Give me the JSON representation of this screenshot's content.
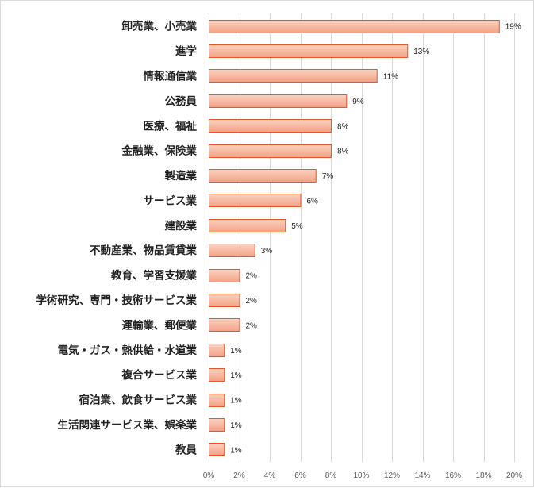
{
  "chart_data": {
    "type": "bar",
    "orientation": "horizontal",
    "title": "",
    "xlabel": "",
    "ylabel": "",
    "categories": [
      "卸売業、小売業",
      "進学",
      "情報通信業",
      "公務員",
      "医療、福祉",
      "金融業、保険業",
      "製造業",
      "サービス業",
      "建設業",
      "不動産業、物品賃貸業",
      "教育、学習支援業",
      "学術研究、専門・技術サービス業",
      "運輸業、郵便業",
      "電気・ガス・熱供給・水道業",
      "複合サービス業",
      "宿泊業、飲食サービス業",
      "生活関連サービス業、娯楽業",
      "教員"
    ],
    "values": [
      19,
      13,
      11,
      9,
      8,
      8,
      7,
      6,
      5,
      3,
      2,
      2,
      2,
      1,
      1,
      1,
      1,
      1
    ],
    "data_labels": [
      "19%",
      "13%",
      "11%",
      "9%",
      "8%",
      "8%",
      "7%",
      "6%",
      "5%",
      "3%",
      "2%",
      "2%",
      "2%",
      "1%",
      "1%",
      "1%",
      "1%",
      "1%"
    ],
    "xlim": [
      0,
      20
    ],
    "x_ticks": [
      0,
      2,
      4,
      6,
      8,
      10,
      12,
      14,
      16,
      18,
      20
    ],
    "x_tick_labels": [
      "0%",
      "2%",
      "4%",
      "6%",
      "8%",
      "10%",
      "12%",
      "14%",
      "16%",
      "18%",
      "20%"
    ],
    "grid": true,
    "legend": "none",
    "colors": {
      "bar_fill_top": "#fbd2c1",
      "bar_fill_bottom": "#f3a184",
      "bar_stroke": "#e2592a",
      "grid": "#d9d9d9"
    }
  }
}
